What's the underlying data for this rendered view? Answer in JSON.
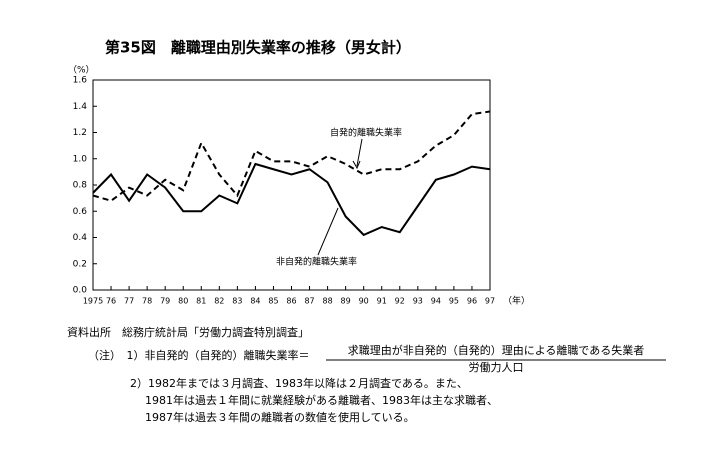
{
  "chart_data": {
    "type": "line",
    "title": "第35図　離職理由別失業率の推移（男女計）",
    "y_unit": "（%）",
    "x_unit": "（年）",
    "categories": [
      "1975",
      "76",
      "77",
      "78",
      "79",
      "80",
      "81",
      "82",
      "83",
      "84",
      "85",
      "86",
      "87",
      "88",
      "89",
      "90",
      "91",
      "92",
      "93",
      "94",
      "95",
      "96",
      "97"
    ],
    "series": [
      {
        "name": "自発的離職失業率",
        "color": "#000000",
        "style": "dashed",
        "values": [
          0.72,
          0.68,
          0.78,
          0.72,
          0.84,
          0.76,
          1.12,
          0.88,
          0.72,
          1.06,
          0.98,
          0.98,
          0.94,
          1.02,
          0.96,
          0.88,
          0.92,
          0.92,
          0.98,
          1.1,
          1.18,
          1.34,
          1.36
        ]
      },
      {
        "name": "非自発的離職失業率",
        "color": "#000000",
        "style": "solid",
        "values": [
          0.74,
          0.88,
          0.68,
          0.88,
          0.78,
          0.6,
          0.6,
          0.72,
          0.66,
          0.96,
          0.92,
          0.88,
          0.92,
          0.82,
          0.56,
          0.42,
          0.48,
          0.44,
          0.64,
          0.84,
          0.88,
          0.94,
          0.92
        ]
      }
    ],
    "ylim": [
      0,
      1.6
    ],
    "yticks": [
      {
        "value": 0,
        "label": "0.0"
      },
      0.2,
      0.4,
      0.6,
      0.8,
      {
        "value": 1,
        "label": "1.0"
      },
      1.2,
      1.4,
      1.6
    ]
  },
  "notes": {
    "source": "資料出所　総務庁統計局「労働力調査特別調査」",
    "note1_label": "（注）　1）非自発的（自発的）離職失業率＝",
    "note1_numerator": "求職理由が非自発的（自発的）理由による離職である失業者",
    "note1_denominator": "労働力人口",
    "note2_lines": [
      "2）1982年までは３月調査、1983年以降は２月調査である。また、",
      "1981年は過去１年間に就業経験がある離職者、1983年は主な求職者、",
      "1987年は過去３年間の離職者の数値を使用している。"
    ]
  }
}
